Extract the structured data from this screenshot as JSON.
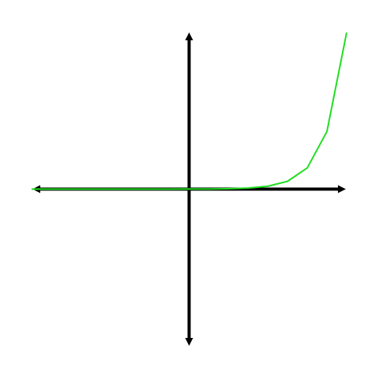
{
  "chart_data": {
    "type": "line",
    "x": [
      -8,
      -7,
      -6,
      -5,
      -4,
      -3,
      -2,
      -1,
      0,
      1,
      2,
      3,
      4,
      5,
      6,
      7,
      8
    ],
    "y": [
      0.00034,
      0.00091,
      0.00248,
      0.00674,
      0.01832,
      0.04979,
      0.1353,
      0.3679,
      1,
      2.718,
      7.389,
      20.09,
      54.6,
      148.4,
      403.4,
      1097,
      2981
    ],
    "xlim": [
      -8,
      8
    ],
    "ylim": [
      -3000,
      3000
    ],
    "grid": false,
    "axes_arrows": true,
    "colors": {
      "series": "#22dd22",
      "axes": "#000000",
      "background": "#ffffff"
    }
  }
}
